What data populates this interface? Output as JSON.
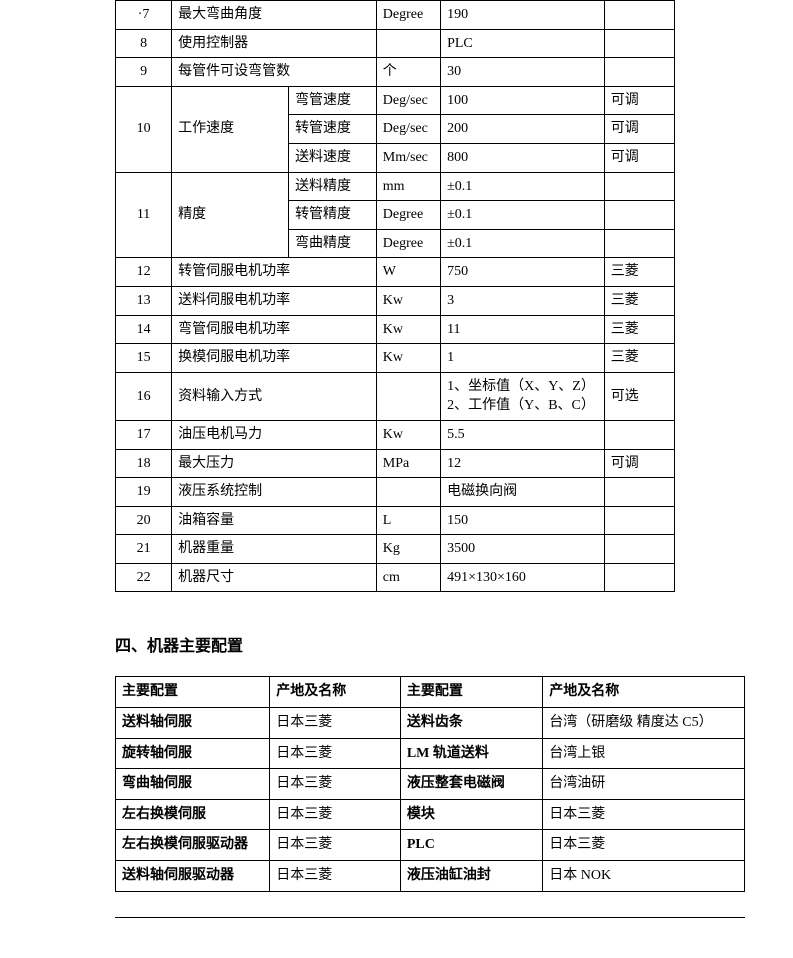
{
  "table1": {
    "rows": [
      {
        "num": "·7",
        "name": "最大弯曲角度",
        "sub": "",
        "unit": "Degree",
        "value": "190",
        "note": "",
        "span": 2
      },
      {
        "num": "8",
        "name": "使用控制器",
        "sub": "",
        "unit": "",
        "value": "PLC",
        "note": "",
        "span": 2
      },
      {
        "num": "9",
        "name": "每管件可设弯管数",
        "sub": "",
        "unit": "个",
        "value": "30",
        "note": "",
        "span": 2
      },
      {
        "num": "10",
        "name": "工作速度",
        "sub": "弯管速度",
        "unit": "Deg/sec",
        "value": "100",
        "note": "可调",
        "groupStart": true,
        "rowspan": 3
      },
      {
        "sub": "转管速度",
        "unit": "Deg/sec",
        "value": "200",
        "note": "可调"
      },
      {
        "sub": "送料速度",
        "unit": "Mm/sec",
        "value": "800",
        "note": "可调"
      },
      {
        "num": "11",
        "name": "精度",
        "sub": "送料精度",
        "unit": "mm",
        "value": "±0.1",
        "note": "",
        "groupStart": true,
        "rowspan": 3
      },
      {
        "sub": "转管精度",
        "unit": "Degree",
        "value": "±0.1",
        "note": ""
      },
      {
        "sub": "弯曲精度",
        "unit": "Degree",
        "value": "±0.1",
        "note": ""
      },
      {
        "num": "12",
        "name": "转管伺服电机功率",
        "sub": "",
        "unit": "W",
        "value": "750",
        "note": "三菱",
        "span": 2
      },
      {
        "num": "13",
        "name": "送料伺服电机功率",
        "sub": "",
        "unit": "Kw",
        "value": "3",
        "note": "三菱",
        "span": 2
      },
      {
        "num": "14",
        "name": "弯管伺服电机功率",
        "sub": "",
        "unit": "Kw",
        "value": "11",
        "note": "三菱",
        "span": 2
      },
      {
        "num": "15",
        "name": "换模伺服电机功率",
        "sub": "",
        "unit": "Kw",
        "value": "1",
        "note": "三菱",
        "span": 2
      },
      {
        "num": "16",
        "name": "资料输入方式",
        "sub": "",
        "unit": "",
        "value": "1、坐标值（X、Y、Z）\n2、工作值（Y、B、C）",
        "note": "可选",
        "span": 2
      },
      {
        "num": "17",
        "name": "油压电机马力",
        "sub": "",
        "unit": "Kw",
        "value": "5.5",
        "note": "",
        "span": 2
      },
      {
        "num": "18",
        "name": "最大压力",
        "sub": "",
        "unit": "MPa",
        "value": "12",
        "note": "可调",
        "span": 2
      },
      {
        "num": "19",
        "name": "液压系统控制",
        "sub": "",
        "unit": "",
        "value": "电磁换向阀",
        "note": "",
        "span": 2
      },
      {
        "num": "20",
        "name": "油箱容量",
        "sub": "",
        "unit": "L",
        "value": "150",
        "note": "",
        "span": 2
      },
      {
        "num": "21",
        "name": "机器重量",
        "sub": "",
        "unit": "Kg",
        "value": "3500",
        "note": "",
        "span": 2
      },
      {
        "num": "22",
        "name": "机器尺寸",
        "sub": "",
        "unit": "cm",
        "value": "491×130×160",
        "note": "",
        "span": 2
      }
    ]
  },
  "sectionTitle": "四、机器主要配置",
  "table2": {
    "header": [
      "主要配置",
      "产地及名称",
      "主要配置",
      "产地及名称"
    ],
    "rows": [
      [
        "送料轴伺服",
        "日本三菱",
        "送料齿条",
        "台湾（研磨级 精度达 C5）"
      ],
      [
        "旋转轴伺服",
        "日本三菱",
        "LM 轨道送料",
        "台湾上银"
      ],
      [
        "弯曲轴伺服",
        "日本三菱",
        "液压整套电磁阀",
        "台湾油研"
      ],
      [
        "左右换模伺服",
        "日本三菱",
        "模块",
        "日本三菱"
      ],
      [
        "左右换模伺服驱动器",
        "日本三菱",
        "PLC",
        "日本三菱"
      ],
      [
        "送料轴伺服驱动器",
        "日本三菱",
        "液压油缸油封",
        "日本 NOK"
      ]
    ]
  }
}
